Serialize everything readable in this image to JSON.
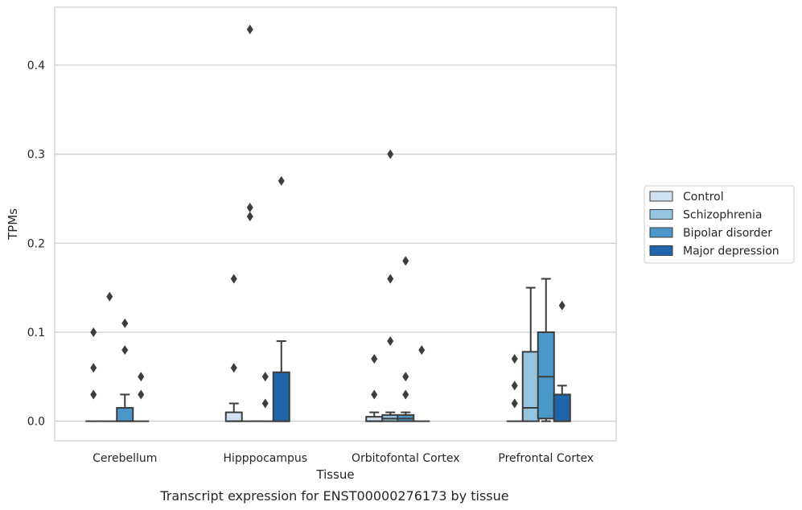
{
  "caption": "Transcript expression for ENST00000276173 by tissue",
  "chart_data": {
    "type": "box",
    "xlabel": "Tissue",
    "ylabel": "TPMs",
    "ylim": [
      -0.022,
      0.465
    ],
    "yticks": [
      0.0,
      0.1,
      0.2,
      0.3,
      0.4
    ],
    "ytick_labels": [
      "0.0",
      "0.1",
      "0.2",
      "0.3",
      "0.4"
    ],
    "grid": "horizontal",
    "legend_position": "right",
    "categories": [
      "Cerebellum",
      "Hipppocampus",
      "Orbitofontal Cortex",
      "Prefrontal Cortex"
    ],
    "series": [
      {
        "name": "Control",
        "color": "#d0e1f2",
        "boxes": [
          {
            "q1": 0,
            "median": 0,
            "q3": 0,
            "whisker_low": 0,
            "whisker_high": 0,
            "outliers": [
              0.03,
              0.06,
              0.1
            ]
          },
          {
            "q1": 0,
            "median": 0,
            "q3": 0.01,
            "whisker_low": 0,
            "whisker_high": 0.02,
            "outliers": [
              0.06,
              0.16
            ]
          },
          {
            "q1": 0,
            "median": 0,
            "q3": 0.005,
            "whisker_low": 0,
            "whisker_high": 0.01,
            "outliers": [
              0.03,
              0.07
            ]
          },
          {
            "q1": 0,
            "median": 0,
            "q3": 0,
            "whisker_low": 0,
            "whisker_high": 0,
            "outliers": [
              0.02,
              0.04,
              0.07
            ]
          }
        ]
      },
      {
        "name": "Schizophrenia",
        "color": "#94c4df",
        "boxes": [
          {
            "q1": 0,
            "median": 0,
            "q3": 0,
            "whisker_low": 0,
            "whisker_high": 0,
            "outliers": [
              0.14
            ]
          },
          {
            "q1": 0,
            "median": 0,
            "q3": 0,
            "whisker_low": 0,
            "whisker_high": 0,
            "outliers": [
              0.23,
              0.24,
              0.44
            ]
          },
          {
            "q1": 0,
            "median": 0.003,
            "q3": 0.007,
            "whisker_low": 0,
            "whisker_high": 0.01,
            "outliers": [
              0.09,
              0.16,
              0.3
            ]
          },
          {
            "q1": 0,
            "median": 0.015,
            "q3": 0.078,
            "whisker_low": 0,
            "whisker_high": 0.15,
            "outliers": []
          }
        ]
      },
      {
        "name": "Bipolar disorder",
        "color": "#4a98c9",
        "boxes": [
          {
            "q1": 0,
            "median": 0,
            "q3": 0.015,
            "whisker_low": 0,
            "whisker_high": 0.03,
            "outliers": [
              0.08,
              0.11
            ]
          },
          {
            "q1": 0,
            "median": 0,
            "q3": 0,
            "whisker_low": 0,
            "whisker_high": 0,
            "outliers": [
              0.02,
              0.05
            ]
          },
          {
            "q1": 0,
            "median": 0.003,
            "q3": 0.007,
            "whisker_low": 0,
            "whisker_high": 0.01,
            "outliers": [
              0.03,
              0.05,
              0.18
            ]
          },
          {
            "q1": 0.003,
            "median": 0.05,
            "q3": 0.1,
            "whisker_low": 0,
            "whisker_high": 0.16,
            "outliers": []
          }
        ]
      },
      {
        "name": "Major depression",
        "color": "#2166ac",
        "boxes": [
          {
            "q1": 0,
            "median": 0,
            "q3": 0,
            "whisker_low": 0,
            "whisker_high": 0,
            "outliers": [
              0.03,
              0.05
            ]
          },
          {
            "q1": 0,
            "median": 0,
            "q3": 0.055,
            "whisker_low": 0,
            "whisker_high": 0.09,
            "outliers": [
              0.27
            ]
          },
          {
            "q1": 0,
            "median": 0,
            "q3": 0,
            "whisker_low": 0,
            "whisker_high": 0,
            "outliers": [
              0.08
            ]
          },
          {
            "q1": 0,
            "median": 0,
            "q3": 0.03,
            "whisker_low": 0,
            "whisker_high": 0.04,
            "outliers": [
              0.13
            ]
          }
        ]
      }
    ]
  }
}
